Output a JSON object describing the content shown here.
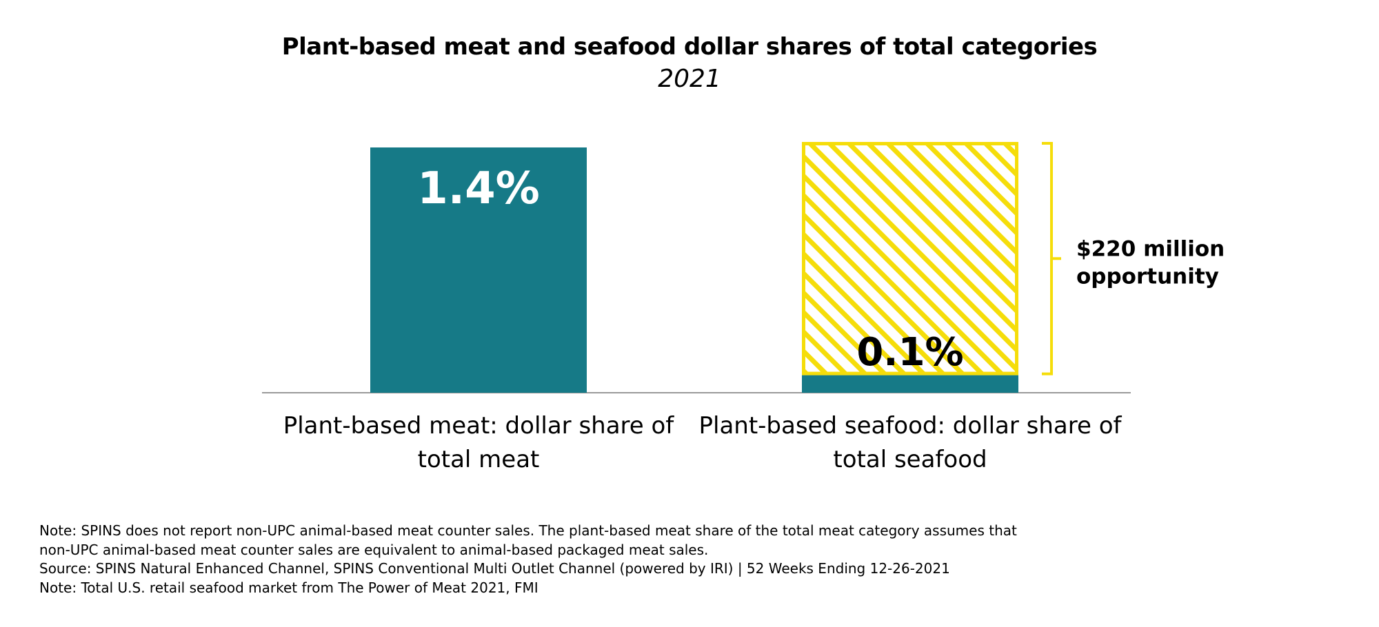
{
  "chart_data": {
    "type": "bar",
    "title": "Plant-based meat and seafood dollar shares of total categories",
    "subtitle": "2021",
    "categories": [
      "Plant-based meat: dollar share of total meat",
      "Plant-based seafood: dollar share of total seafood"
    ],
    "values": [
      1.4,
      0.1
    ],
    "value_labels": [
      "1.4%",
      "0.1%"
    ],
    "opportunity": {
      "category_index": 1,
      "target_value": 1.4,
      "label": "$220 million opportunity"
    },
    "ylim": [
      0,
      1.4
    ],
    "xlabel": "",
    "ylabel": "",
    "grid": false,
    "colors": {
      "bar": "#167a87",
      "opportunity_outline": "#f5dd0a",
      "opportunity_hatch": "#f5dd0a",
      "bracket": "#f5dd0a",
      "axis": "#999999",
      "label_on_bar": "#ffffff",
      "label_in_opportunity": "#000000"
    }
  },
  "notes": [
    "Note: SPINS does not report non-UPC animal-based meat counter sales. The plant-based meat share of the total meat category assumes that",
    "non-UPC animal-based meat counter sales are equivalent to animal-based packaged meat sales.",
    "Source: SPINS Natural Enhanced Channel, SPINS Conventional Multi Outlet Channel (powered by IRI) | 52 Weeks Ending 12-26-2021",
    "Note: Total U.S. retail seafood market from The Power of Meat 2021, FMI"
  ]
}
